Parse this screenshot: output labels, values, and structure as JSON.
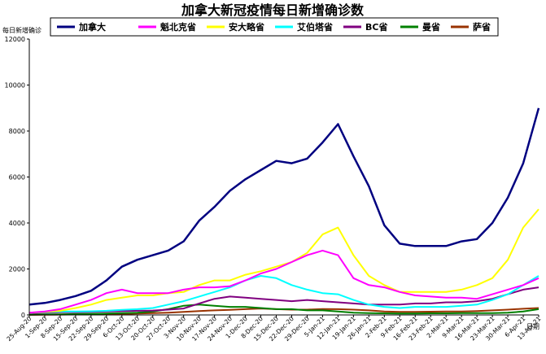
{
  "chart_data": {
    "type": "line",
    "title": "加拿大新冠疫情每日新增确诊数",
    "ylabel": "每日新增确诊",
    "xlabel": "日期",
    "ylim": [
      0,
      12000
    ],
    "yticks": [
      0,
      2000,
      4000,
      6000,
      8000,
      10000,
      12000
    ],
    "legend_position": "top",
    "grid": false,
    "categories": [
      "25-Aug-20",
      "1-Sep-20",
      "8-Sep-20",
      "15-Sep-20",
      "22-Sep-20",
      "29-Sep-20",
      "6-Oct-20",
      "13-Oct-20",
      "20-Oct-20",
      "27-Oct-20",
      "3-Nov-20",
      "10-Nov-20",
      "17-Nov-20",
      "24-Nov-20",
      "1-Dec-20",
      "8-Dec-20",
      "15-Dec-20",
      "22-Dec-20",
      "29-Dec-20",
      "5-Jan-21",
      "12-Jan-21",
      "19-Jan-21",
      "26-Jan-21",
      "2-Feb-21",
      "9-Feb-21",
      "16-Feb-21",
      "23-Feb-21",
      "2-Mar-21",
      "9-Mar-21",
      "16-Mar-21",
      "23-Mar-21",
      "30-Mar-21",
      "6-Apr-21",
      "13-Apr-21"
    ],
    "series": [
      {
        "name": "加拿大",
        "color": "#000080",
        "width": 2.5,
        "values": [
          450,
          520,
          650,
          820,
          1050,
          1500,
          2100,
          2400,
          2600,
          2800,
          3200,
          4100,
          4700,
          5400,
          5900,
          6300,
          6700,
          6600,
          6800,
          7500,
          8300,
          6900,
          5600,
          3900,
          3100,
          3000,
          3000,
          3000,
          3200,
          3300,
          4000,
          5100,
          6600,
          9000
        ]
      },
      {
        "name": "魁北克省",
        "color": "#ff00ff",
        "width": 2,
        "values": [
          100,
          150,
          250,
          450,
          650,
          950,
          1100,
          950,
          950,
          950,
          1100,
          1200,
          1200,
          1250,
          1500,
          1800,
          2000,
          2300,
          2600,
          2800,
          2600,
          1600,
          1300,
          1200,
          1000,
          850,
          800,
          750,
          750,
          700,
          900,
          1100,
          1300,
          1600
        ]
      },
      {
        "name": "安大略省",
        "color": "#ffff00",
        "width": 2,
        "values": [
          100,
          130,
          180,
          300,
          450,
          650,
          750,
          850,
          850,
          950,
          1000,
          1300,
          1500,
          1500,
          1750,
          1900,
          2100,
          2300,
          2700,
          3500,
          3800,
          2600,
          1700,
          1300,
          1000,
          1000,
          1000,
          1000,
          1100,
          1300,
          1600,
          2400,
          3800,
          4600
        ]
      },
      {
        "name": "艾伯塔省",
        "color": "#00ffff",
        "width": 2,
        "values": [
          100,
          120,
          150,
          150,
          160,
          180,
          220,
          250,
          300,
          450,
          600,
          800,
          1000,
          1200,
          1500,
          1700,
          1600,
          1300,
          1100,
          950,
          900,
          650,
          450,
          350,
          300,
          350,
          350,
          350,
          400,
          450,
          650,
          900,
          1300,
          1700
        ]
      },
      {
        "name": "BC省",
        "color": "#800080",
        "width": 2,
        "values": [
          80,
          100,
          120,
          120,
          130,
          150,
          170,
          180,
          190,
          230,
          280,
          500,
          700,
          800,
          750,
          700,
          650,
          600,
          650,
          600,
          550,
          500,
          450,
          450,
          450,
          500,
          500,
          550,
          550,
          600,
          700,
          900,
          1100,
          1200
        ]
      },
      {
        "name": "曼省",
        "color": "#008000",
        "width": 2,
        "values": [
          10,
          20,
          30,
          40,
          50,
          60,
          80,
          100,
          150,
          250,
          400,
          450,
          400,
          350,
          350,
          300,
          250,
          250,
          200,
          200,
          150,
          100,
          80,
          70,
          60,
          60,
          70,
          70,
          80,
          80,
          80,
          100,
          150,
          250
        ]
      },
      {
        "name": "萨省",
        "color": "#993300",
        "width": 2,
        "values": [
          5,
          10,
          15,
          20,
          25,
          30,
          40,
          60,
          80,
          100,
          130,
          170,
          200,
          220,
          250,
          280,
          250,
          230,
          230,
          260,
          250,
          230,
          200,
          150,
          130,
          130,
          140,
          150,
          150,
          170,
          200,
          230,
          270,
          300
        ]
      }
    ]
  }
}
